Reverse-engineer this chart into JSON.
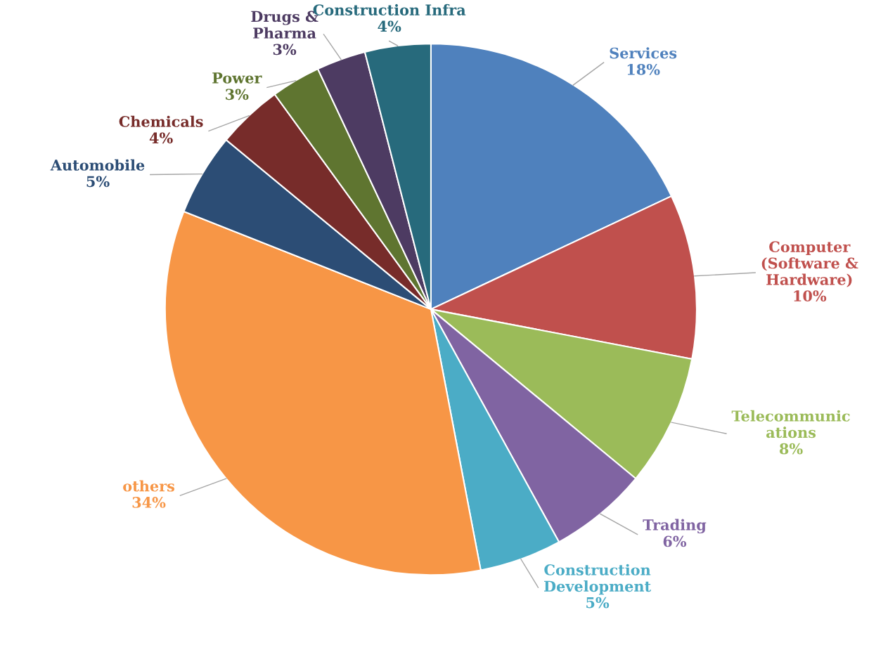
{
  "chart_data": {
    "type": "pie",
    "categories": [
      "Services",
      "Computer\n(Software &\nHardware)",
      "Telecommunic\nations",
      "Trading",
      "Construction\nDevelopment",
      "others",
      "Automobile",
      "Chemicals",
      "Power",
      "Drugs &\nPharma",
      "Construction Infra"
    ],
    "values": [
      18,
      10,
      8,
      6,
      5,
      34,
      5,
      4,
      3,
      3,
      4
    ],
    "value_labels": [
      "18%",
      "10%",
      "8%",
      "6%",
      "5%",
      "34%",
      "5%",
      "4%",
      "3%",
      "3%",
      "4%"
    ],
    "colors": [
      "#4f81bd",
      "#c0504d",
      "#9bbb59",
      "#8064a2",
      "#4bacc6",
      "#f79646",
      "#2c4d75",
      "#772c2a",
      "#5f7530",
      "#4d3b62",
      "#276a7c"
    ],
    "legend": false
  }
}
